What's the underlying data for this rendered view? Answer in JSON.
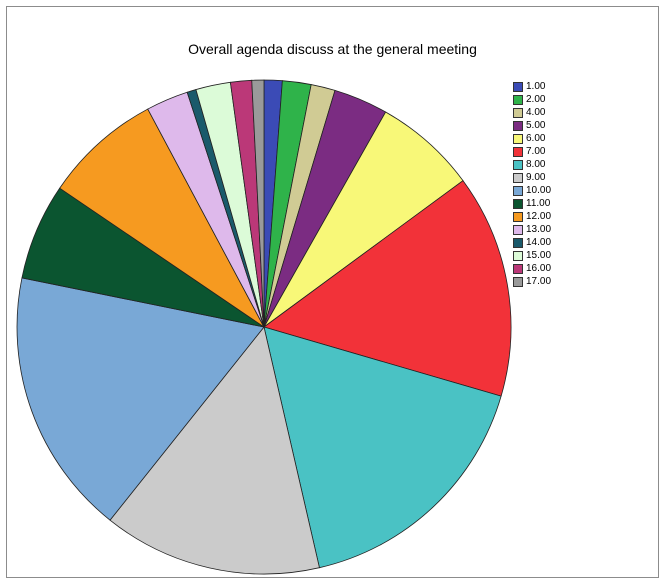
{
  "chart_data": {
    "type": "pie",
    "title": "Overall agenda discuss at the general meeting",
    "categories": [
      "1.00",
      "2.00",
      "4.00",
      "5.00",
      "6.00",
      "7.00",
      "8.00",
      "9.00",
      "10.00",
      "11.00",
      "12.00",
      "13.00",
      "14.00",
      "15.00",
      "16.00",
      "17.00"
    ],
    "values": [
      1.2,
      1.9,
      1.6,
      3.6,
      6.8,
      14.8,
      17.1,
      14.5,
      17.7,
      6.4,
      7.8,
      2.8,
      0.6,
      2.3,
      1.4,
      0.8
    ],
    "colors": [
      "#3b4bb6",
      "#2fb34a",
      "#d0cb94",
      "#7b2c82",
      "#f8f878",
      "#f23239",
      "#4ac2c4",
      "#cbcbcb",
      "#79a8d6",
      "#0b5530",
      "#f69a20",
      "#deb9eb",
      "#1a5a6b",
      "#dcfbd8",
      "#bb3878",
      "#9a9a9a"
    ],
    "legend_position": "right"
  }
}
